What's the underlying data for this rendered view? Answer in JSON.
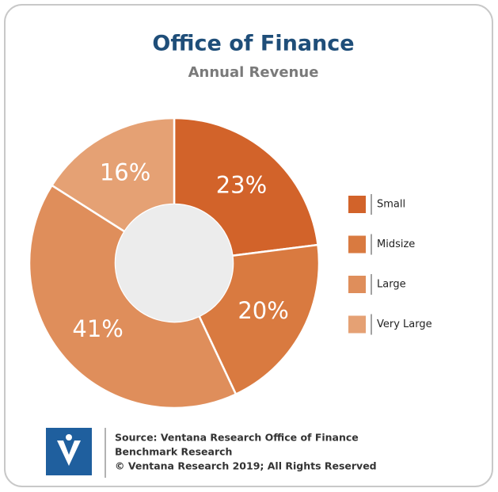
{
  "chart_data": {
    "type": "pie",
    "title": "Office of Finance",
    "subtitle": "Annual Revenue",
    "categories": [
      "Small",
      "Midsize",
      "Large",
      "Very Large"
    ],
    "values": [
      23,
      20,
      41,
      16
    ],
    "value_labels": [
      "23%",
      "20%",
      "41%",
      "16%"
    ],
    "colors": [
      "#d2632a",
      "#d97a40",
      "#df8e5b",
      "#e5a174"
    ],
    "legend": "right",
    "source": [
      "Source: Ventana Research Office of Finance",
      "Benchmark Research",
      "© Ventana Research 2019; All Rights Reserved"
    ]
  }
}
